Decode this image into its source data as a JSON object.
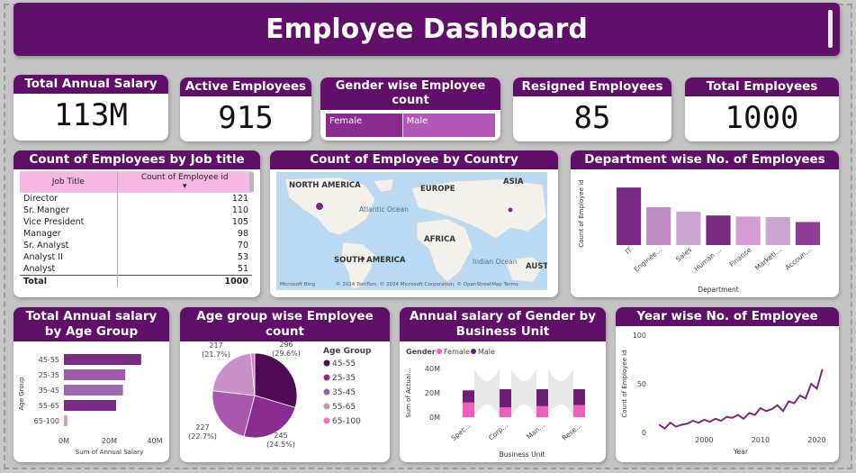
{
  "dashboard": {
    "title": "Employee Dashboard"
  },
  "kpis": {
    "total_salary": {
      "label": "Total Annual Salary",
      "value": "113M"
    },
    "active": {
      "label": "Active Employees",
      "value": "915"
    },
    "resigned": {
      "label": "Resigned Employees",
      "value": "85"
    },
    "total": {
      "label": "Total Employees",
      "value": "1000"
    }
  },
  "gender_count": {
    "title": "Gender wise Employee count",
    "segments": [
      {
        "label": "Female",
        "share": 0.45,
        "color": "#8a2b8f"
      },
      {
        "label": "Male",
        "share": 0.55,
        "color": "#b257b5"
      }
    ]
  },
  "job_table": {
    "title": "Count of Employees by Job title",
    "col1": "Job Title",
    "col2": "Count of Employee id",
    "rows": [
      {
        "title": "Director",
        "count": "121"
      },
      {
        "title": "Sr. Manger",
        "count": "110"
      },
      {
        "title": "Vice President",
        "count": "105"
      },
      {
        "title": "Manager",
        "count": "98"
      },
      {
        "title": "Sr. Analyst",
        "count": "70"
      },
      {
        "title": "Analyst II",
        "count": "53"
      },
      {
        "title": "Analyst",
        "count": "51"
      }
    ],
    "total_label": "Total",
    "total_value": "1000"
  },
  "map": {
    "title": "Count of Employee by Country",
    "labels": [
      "NORTH AMERICA",
      "EUROPE",
      "ASIA",
      "AFRICA",
      "SOUTH AMERICA",
      "AUSTRA",
      "Atlantic Ocean",
      "Indian Ocean"
    ],
    "attribution_logo": "Microsoft Bing",
    "attribution": "© 2024 TomTom, © 2024 Microsoft Corporation, © OpenStreetMap  Terms"
  },
  "chart_data": [
    {
      "type": "bar",
      "title": "Department wise No. of Employees",
      "categories": [
        "IT",
        "Enginee...",
        "Sales",
        "Human ...",
        "Finance",
        "Marketi...",
        "Accoun..."
      ],
      "values": [
        210,
        138,
        122,
        108,
        104,
        102,
        84
      ],
      "colors": [
        "#7b2a83",
        "#c08cc5",
        "#c9a5d0",
        "#7b2a83",
        "#d39ad4",
        "#c9a5d0",
        "#8d3e94"
      ],
      "xlabel": "Department",
      "ylabel": "Count of Employee id",
      "ylim": [
        0,
        240
      ]
    },
    {
      "type": "bar",
      "title": "Total Annual salary by Age Group",
      "categories": [
        "45-55",
        "25-35",
        "35-45",
        "55-65",
        "65-100"
      ],
      "values": [
        34,
        27,
        26,
        23,
        1.5
      ],
      "colors": [
        "#7b2a83",
        "#a15aa9",
        "#9c6bb1",
        "#7b2a83",
        "#d39ad4"
      ],
      "xlabel": "Sum of Annual Salary",
      "ylabel": "Age Group",
      "ticks": [
        "0M",
        "20M",
        "40M"
      ],
      "xlim": [
        0,
        40
      ]
    },
    {
      "type": "pie",
      "title": "Age group wise Employee count",
      "legend_title": "Age Group",
      "slices": [
        {
          "label": "45-55",
          "value": 296,
          "pct": "(29.6%)",
          "color": "#4e0a55"
        },
        {
          "label": "25-35",
          "value": 245,
          "pct": "(24.5%)",
          "color": "#8a2b8f"
        },
        {
          "label": "35-45",
          "value": 227,
          "pct": "(22.7%)",
          "color": "#a857ad"
        },
        {
          "label": "55-65",
          "value": 217,
          "pct": "(21.7%)",
          "color": "#c990c9"
        },
        {
          "label": "65-100",
          "value": 15,
          "pct": "",
          "color": "#f070c8"
        }
      ],
      "legend": [
        "45-55",
        "25-35",
        "35-45",
        "55-65",
        "65-100"
      ]
    },
    {
      "type": "bar",
      "title": "Annual salary of Gender by Business Unit",
      "legend_title": "Gender",
      "series": [
        {
          "name": "Female",
          "color": "#ef5fbb",
          "values": [
            12,
            8,
            9,
            10
          ]
        },
        {
          "name": "Male",
          "color": "#6e1f74",
          "values": [
            10,
            15,
            14,
            13
          ]
        }
      ],
      "categories": [
        "Spec...",
        "Corp...",
        "Man...",
        "Rese..."
      ],
      "yticks": [
        "0M",
        "20M",
        "40M"
      ],
      "xlabel": "Business Unit",
      "ylabel": "Sum of Actual...",
      "ylim": [
        0,
        40
      ]
    },
    {
      "type": "line",
      "title": "Year wise No. of Employee",
      "x": [
        1992,
        1993,
        1994,
        1995,
        1996,
        1997,
        1998,
        1999,
        2000,
        2001,
        2002,
        2003,
        2004,
        2005,
        2006,
        2007,
        2008,
        2009,
        2010,
        2011,
        2012,
        2013,
        2014,
        2015,
        2016,
        2017,
        2018,
        2019,
        2020,
        2021
      ],
      "y": [
        8,
        4,
        10,
        6,
        8,
        9,
        12,
        10,
        13,
        11,
        14,
        12,
        16,
        15,
        18,
        14,
        20,
        18,
        25,
        22,
        24,
        28,
        22,
        32,
        30,
        38,
        35,
        50,
        45,
        65
      ],
      "xticks": [
        "2000",
        "2010",
        "2020"
      ],
      "yticks": [
        "0",
        "50",
        "100"
      ],
      "xlabel": "Year",
      "ylabel": "Count of Employee id",
      "xlim": [
        1991,
        2022
      ],
      "ylim": [
        0,
        100
      ],
      "color": "#7b2a83"
    }
  ]
}
